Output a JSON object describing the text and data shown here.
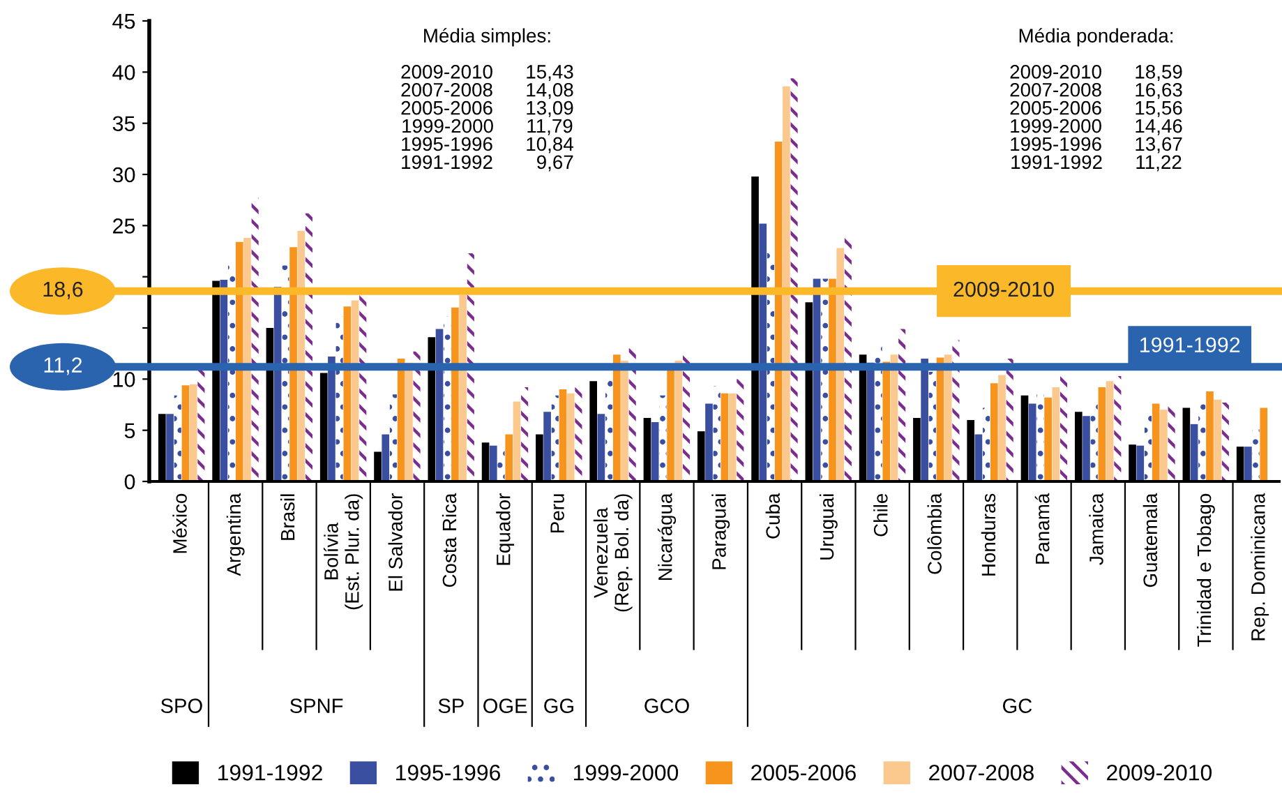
{
  "chart_data": {
    "type": "bar",
    "categories": [
      "México",
      "Argentina",
      "Brasil",
      "Bolívia\n(Est. Plur. da)",
      "El Salvador",
      "Costa Rica",
      "Equador",
      "Peru",
      "Venezuela\n(Rep. Bol. da)",
      "Nicarágua",
      "Paraguai",
      "Cuba",
      "Uruguai",
      "Chile",
      "Colômbia",
      "Honduras",
      "Panamá",
      "Jamaica",
      "Guatemala",
      "Trinidad e Tobago",
      "Rep. Dominicana"
    ],
    "series": [
      {
        "name": "1991-1992",
        "color": "#000000",
        "values": [
          6.6,
          19.6,
          15.0,
          10.6,
          2.9,
          14.1,
          3.8,
          4.6,
          9.8,
          6.2,
          4.9,
          29.8,
          17.5,
          12.4,
          6.2,
          6.0,
          8.4,
          6.8,
          3.6,
          7.2,
          3.4
        ]
      },
      {
        "name": "1995-1996",
        "color": "#3a4fa0",
        "values": [
          6.6,
          19.7,
          19.0,
          12.2,
          4.6,
          14.9,
          3.5,
          6.8,
          6.6,
          5.8,
          7.6,
          25.2,
          19.8,
          11.6,
          12.0,
          4.6,
          7.6,
          6.4,
          3.5,
          5.6,
          3.4
        ]
      },
      {
        "name": "1999-2000",
        "color": "#3a4fa0",
        "values": [
          8.4,
          21.1,
          21.1,
          16.1,
          8.5,
          16.1,
          3.0,
          8.4,
          10.0,
          8.4,
          9.3,
          22.7,
          19.8,
          13.6,
          10.7,
          7.2,
          8.5,
          7.6,
          6.8,
          7.6,
          5.1
        ]
      },
      {
        "name": "2005-2006",
        "color": "#f7941d",
        "values": [
          9.4,
          23.4,
          22.9,
          17.1,
          12.0,
          17.0,
          4.6,
          9.0,
          12.4,
          11.0,
          8.6,
          33.2,
          19.8,
          11.7,
          12.1,
          9.6,
          8.2,
          9.2,
          7.6,
          8.8,
          7.2
        ]
      },
      {
        "name": "2007-2008",
        "color": "#fbc98e",
        "values": [
          9.5,
          23.8,
          24.5,
          17.7,
          11.6,
          18.2,
          7.8,
          8.6,
          11.8,
          11.8,
          8.6,
          38.6,
          22.8,
          12.4,
          12.4,
          10.4,
          9.2,
          9.8,
          7.0,
          8.0,
          null
        ]
      },
      {
        "name": "2009-2010",
        "color": "#7b2d8e",
        "values": [
          11.1,
          27.7,
          26.2,
          18.3,
          12.7,
          22.3,
          9.2,
          9.2,
          13.0,
          12.6,
          10.0,
          39.4,
          23.9,
          14.9,
          13.8,
          12.0,
          10.5,
          10.3,
          7.7,
          7.7,
          null
        ]
      }
    ],
    "ylim": [
      0,
      45
    ],
    "yticks": [
      0,
      5,
      10,
      {
        "value": 15,
        "label": null
      },
      {
        "value": 20,
        "label": null
      },
      25,
      30,
      35,
      40,
      45
    ],
    "ref_lines": [
      {
        "axis": "y",
        "value": 18.6,
        "label": "18,6",
        "color": "#fbb829"
      },
      {
        "axis": "y",
        "value": 11.2,
        "label": "11,2",
        "color": "#2a63ae"
      }
    ],
    "annotations": [
      "Média simples:\n\n2009-2010      15,43\n2007-2008      14,08\n2005-2006      13,09\n1999-2000      11,79\n1995-1996      10,84\n1991-1992        9,67",
      "Média ponderada:\n\n2009-2010      18,59\n2007-2008      16,63\n2005-2006      15,56\n1999-2000      14,46\n1995-1996      13,67\n1991-1992      11,22",
      {
        "text": "2009-2010",
        "y": 18.6
      },
      {
        "text": "1991-1992",
        "y": 11.2
      },
      "SPO",
      "SPNF",
      "SP",
      "OGE",
      "GG",
      "GCO",
      "GC"
    ],
    "grid": false,
    "legend": "bottom"
  }
}
